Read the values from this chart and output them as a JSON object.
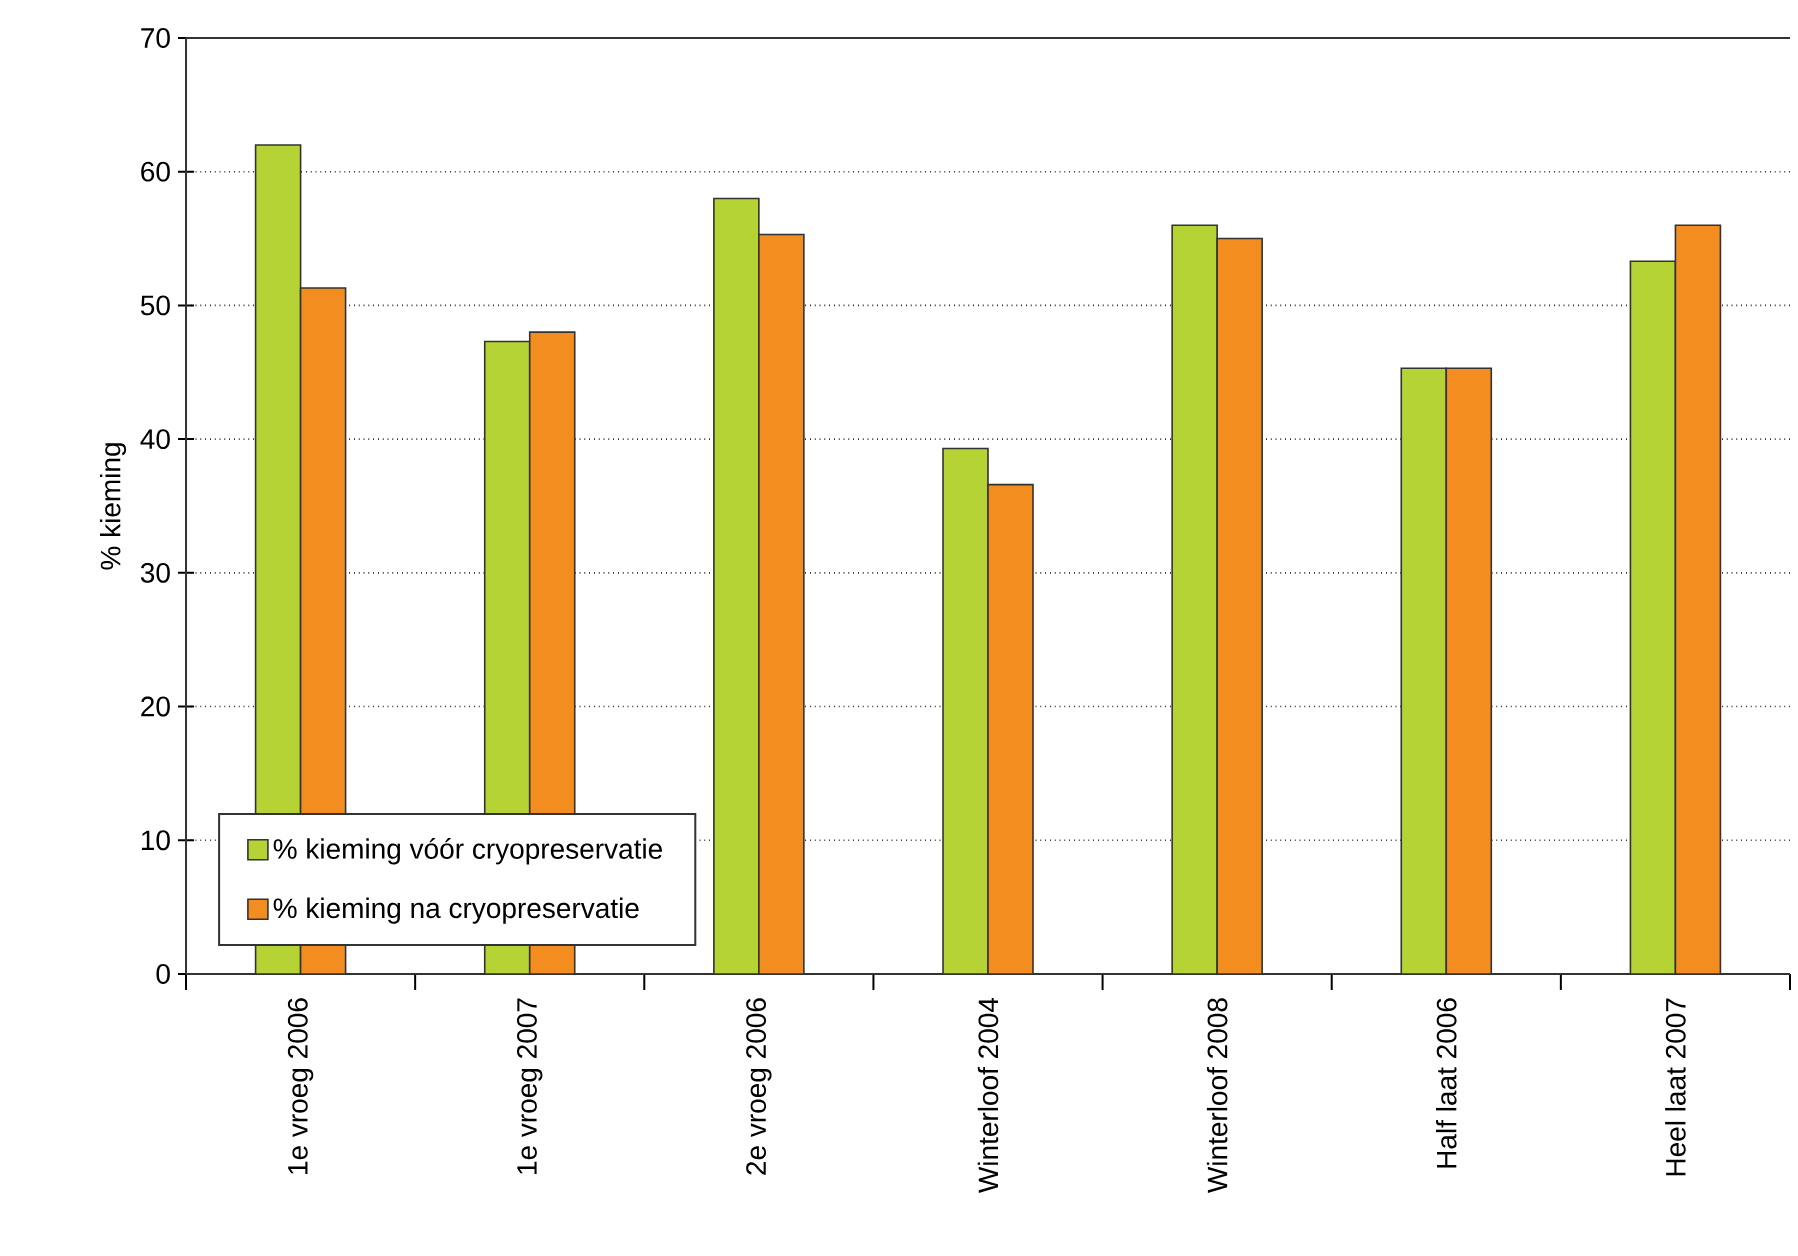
{
  "chart_data": {
    "type": "bar",
    "ylabel": "% kieming",
    "categories": [
      "1e vroeg 2006",
      "1e vroeg 2007",
      "2e vroeg 2006",
      "Winterloof 2004",
      "Winterloof 2008",
      "Half laat 2006",
      "Heel laat 2007"
    ],
    "series": [
      {
        "name": "% kieming vóór cryopreservatie",
        "color": "#b5d334",
        "values": [
          62.0,
          47.3,
          58.0,
          39.3,
          56.0,
          45.3,
          53.3
        ]
      },
      {
        "name": "% kieming na cryopreservatie",
        "color": "#f38d1f",
        "values": [
          51.3,
          48.0,
          55.3,
          36.6,
          55.0,
          45.3,
          56.0
        ]
      }
    ],
    "ylim": [
      0,
      70
    ],
    "yticks": [
      0,
      10,
      20,
      30,
      40,
      50,
      60,
      70
    ],
    "grid": "y",
    "legend": "bottom left"
  }
}
